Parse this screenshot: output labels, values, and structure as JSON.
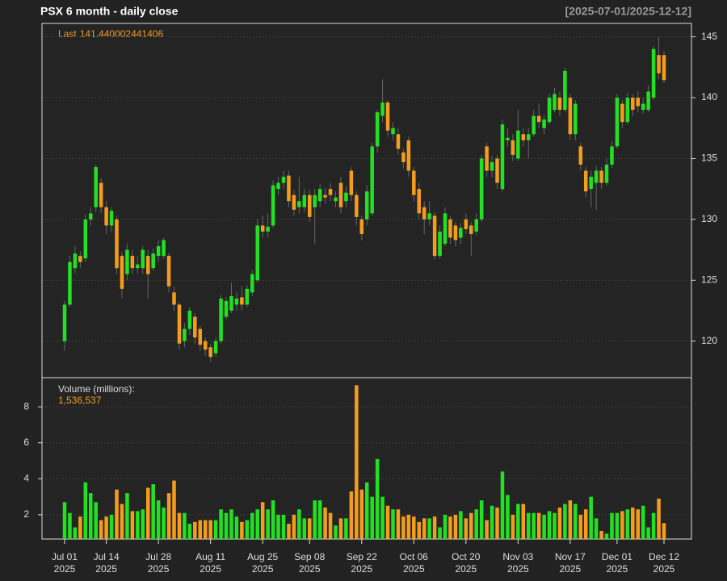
{
  "chart_data": [
    {
      "type": "candlestick",
      "title": "PSX  6 month - daily close",
      "date_range": "[2025-07-01/2025-12-12]",
      "last_prefix": "Last",
      "up_color": "#22e022",
      "down_color": "#f39c1e",
      "ylim": [
        117,
        146.1
      ],
      "yticks": [
        120,
        125,
        130,
        135,
        140,
        145
      ],
      "grid": true,
      "xticks": [
        {
          "value": "2025-07-01",
          "label": "Jul 01",
          "year": "2025"
        },
        {
          "value": "2025-07-14",
          "label": "Jul 14",
          "year": "2025"
        },
        {
          "value": "2025-07-28",
          "label": "Jul 28",
          "year": "2025"
        },
        {
          "value": "2025-08-11",
          "label": "Aug 11",
          "year": "2025"
        },
        {
          "value": "2025-08-25",
          "label": "Aug 25",
          "year": "2025"
        },
        {
          "value": "2025-09-08",
          "label": "Sep 08",
          "year": "2025"
        },
        {
          "value": "2025-09-22",
          "label": "Sep 22",
          "year": "2025"
        },
        {
          "value": "2025-10-06",
          "label": "Oct 06",
          "year": "2025"
        },
        {
          "value": "2025-10-20",
          "label": "Oct 20",
          "year": "2025"
        },
        {
          "value": "2025-11-03",
          "label": "Nov 03",
          "year": "2025"
        },
        {
          "value": "2025-11-17",
          "label": "Nov 17",
          "year": "2025"
        },
        {
          "value": "2025-12-01",
          "label": "Dec 01",
          "year": "2025"
        },
        {
          "value": "2025-12-12",
          "label": "Dec 12",
          "year": "2025"
        }
      ],
      "x": [
        "2025-07-01",
        "2025-07-02",
        "2025-07-03",
        "2025-07-07",
        "2025-07-08",
        "2025-07-09",
        "2025-07-10",
        "2025-07-11",
        "2025-07-14",
        "2025-07-15",
        "2025-07-16",
        "2025-07-17",
        "2025-07-18",
        "2025-07-21",
        "2025-07-22",
        "2025-07-23",
        "2025-07-24",
        "2025-07-25",
        "2025-07-28",
        "2025-07-29",
        "2025-07-30",
        "2025-07-31",
        "2025-08-01",
        "2025-08-04",
        "2025-08-05",
        "2025-08-06",
        "2025-08-07",
        "2025-08-08",
        "2025-08-11",
        "2025-08-12",
        "2025-08-13",
        "2025-08-14",
        "2025-08-15",
        "2025-08-18",
        "2025-08-19",
        "2025-08-20",
        "2025-08-21",
        "2025-08-22",
        "2025-08-25",
        "2025-08-26",
        "2025-08-27",
        "2025-08-28",
        "2025-08-29",
        "2025-09-02",
        "2025-09-03",
        "2025-09-04",
        "2025-09-05",
        "2025-09-08",
        "2025-09-09",
        "2025-09-10",
        "2025-09-11",
        "2025-09-12",
        "2025-09-15",
        "2025-09-16",
        "2025-09-17",
        "2025-09-18",
        "2025-09-19",
        "2025-09-22",
        "2025-09-23",
        "2025-09-24",
        "2025-09-25",
        "2025-09-26",
        "2025-09-29",
        "2025-09-30",
        "2025-10-01",
        "2025-10-02",
        "2025-10-03",
        "2025-10-06",
        "2025-10-07",
        "2025-10-08",
        "2025-10-09",
        "2025-10-10",
        "2025-10-13",
        "2025-10-14",
        "2025-10-15",
        "2025-10-16",
        "2025-10-17",
        "2025-10-20",
        "2025-10-21",
        "2025-10-22",
        "2025-10-23",
        "2025-10-24",
        "2025-10-27",
        "2025-10-28",
        "2025-10-29",
        "2025-10-30",
        "2025-10-31",
        "2025-11-03",
        "2025-11-04",
        "2025-11-05",
        "2025-11-06",
        "2025-11-07",
        "2025-11-10",
        "2025-11-11",
        "2025-11-12",
        "2025-11-13",
        "2025-11-14",
        "2025-11-17",
        "2025-11-18",
        "2025-11-19",
        "2025-11-20",
        "2025-11-21",
        "2025-11-24",
        "2025-11-25",
        "2025-11-26",
        "2025-11-28",
        "2025-12-01",
        "2025-12-02",
        "2025-12-03",
        "2025-12-04",
        "2025-12-05",
        "2025-12-08",
        "2025-12-09",
        "2025-12-10",
        "2025-12-11",
        "2025-12-12"
      ],
      "open": [
        120.0,
        123.0,
        126.0,
        127.0,
        126.8,
        130.0,
        131.0,
        133.0,
        131.0,
        129.5,
        130.0,
        127.0,
        125.5,
        127.0,
        126.0,
        126.0,
        127.0,
        126.0,
        127.0,
        127.0,
        127.0,
        124.0,
        123.0,
        120.0,
        121.0,
        122.0,
        121.0,
        120.0,
        119.5,
        119.0,
        120.0,
        122.0,
        122.5,
        123.0,
        123.6,
        123.0,
        124.0,
        125.0,
        129.5,
        129.0,
        129.5,
        132.5,
        133.0,
        133.6,
        132.0,
        131.0,
        131.0,
        132.0,
        131.0,
        131.5,
        132.0,
        132.5,
        131.5,
        133.0,
        131.5,
        134.0,
        132.0,
        130.0,
        130.0,
        130.5,
        136.0,
        138.5,
        139.6,
        137.0,
        137.0,
        135.5,
        136.5,
        134.0,
        132.5,
        131.0,
        130.0,
        130.3,
        127.0,
        128.0,
        130.0,
        129.5,
        128.5,
        130.0,
        129.5,
        129.0,
        130.0,
        136.0,
        134.0,
        135.0,
        132.5,
        136.5,
        136.5,
        135.0,
        137.0,
        136.5,
        137.0,
        138.5,
        137.5,
        138.0,
        139.0,
        140.0,
        139.0,
        140.0,
        137.0,
        136.0,
        134.0,
        132.5,
        133.0,
        134.0,
        133.0,
        134.5,
        136.0,
        139.5,
        138.0,
        140.0,
        140.0,
        139.0,
        139.0,
        140.0,
        143.5,
        143.5
      ],
      "high": [
        123.3,
        127.0,
        127.8,
        127.4,
        130.4,
        131.0,
        134.5,
        133.4,
        131.5,
        131.0,
        130.3,
        127.3,
        128.0,
        127.5,
        127.0,
        127.8,
        127.5,
        127.6,
        128.3,
        128.5,
        127.2,
        124.5,
        123.2,
        121.5,
        122.8,
        122.3,
        121.3,
        120.3,
        119.8,
        120.3,
        123.8,
        123.6,
        124.8,
        124.0,
        124.5,
        124.6,
        125.8,
        130.0,
        130.3,
        130.5,
        133.2,
        133.5,
        134.0,
        134.0,
        132.4,
        133.5,
        132.5,
        132.4,
        132.5,
        132.9,
        132.6,
        133.0,
        132.3,
        133.5,
        132.7,
        134.3,
        132.3,
        130.3,
        132.8,
        136.3,
        139.0,
        141.5,
        139.8,
        138.0,
        137.5,
        135.8,
        136.8,
        134.3,
        133.0,
        131.5,
        131.5,
        130.6,
        129.5,
        131.0,
        130.3,
        129.8,
        129.7,
        130.5,
        129.8,
        130.5,
        135.3,
        136.3,
        135.2,
        135.3,
        138.2,
        137.5,
        137.0,
        139.0,
        137.5,
        137.5,
        139.0,
        139.5,
        138.6,
        140.3,
        140.8,
        140.5,
        142.5,
        140.3,
        139.8,
        136.3,
        134.3,
        134.0,
        134.4,
        134.3,
        135.0,
        136.4,
        140.3,
        139.8,
        140.4,
        140.3,
        140.5,
        140.0,
        141.0,
        144.2,
        145.0,
        143.8
      ],
      "low": [
        119.2,
        122.8,
        125.6,
        126.0,
        126.5,
        129.5,
        130.6,
        130.5,
        128.8,
        129.0,
        125.5,
        123.5,
        125.0,
        125.5,
        125.6,
        125.5,
        123.5,
        125.8,
        126.5,
        126.8,
        124.0,
        122.5,
        119.3,
        119.5,
        120.5,
        119.8,
        119.2,
        118.8,
        118.3,
        118.7,
        119.8,
        121.8,
        122.3,
        122.5,
        122.5,
        122.8,
        123.7,
        124.8,
        128.5,
        128.5,
        129.3,
        132.0,
        132.5,
        131.0,
        130.3,
        130.5,
        130.6,
        129.8,
        128.0,
        131.0,
        131.3,
        131.5,
        131.0,
        130.5,
        131.0,
        131.5,
        129.5,
        128.3,
        129.5,
        130.3,
        135.5,
        138.0,
        136.8,
        136.5,
        135.3,
        134.2,
        133.5,
        131.5,
        130.0,
        128.8,
        129.5,
        126.7,
        126.8,
        127.8,
        128.0,
        127.8,
        128.0,
        128.8,
        127.0,
        128.7,
        129.8,
        133.5,
        133.5,
        132.5,
        132.3,
        136.0,
        134.8,
        134.8,
        136.0,
        135.0,
        136.8,
        137.5,
        137.0,
        137.8,
        138.8,
        138.5,
        138.8,
        136.5,
        136.5,
        134.0,
        131.8,
        131.0,
        130.8,
        132.5,
        132.8,
        134.2,
        135.8,
        137.5,
        137.8,
        138.5,
        138.8,
        138.7,
        138.8,
        139.8,
        141.5,
        141.2
      ],
      "close": [
        123.0,
        126.5,
        127.2,
        126.5,
        130.0,
        130.5,
        134.3,
        131.0,
        129.5,
        130.7,
        126.0,
        124.3,
        127.5,
        126.0,
        126.3,
        127.5,
        125.5,
        127.2,
        127.8,
        128.3,
        124.5,
        123.0,
        119.8,
        121.0,
        122.5,
        120.3,
        119.7,
        119.3,
        118.7,
        120.0,
        123.5,
        123.3,
        123.7,
        123.5,
        123.0,
        124.3,
        125.5,
        129.5,
        129.0,
        129.4,
        132.8,
        133.0,
        133.5,
        131.5,
        130.8,
        131.5,
        132.0,
        130.2,
        132.0,
        132.5,
        131.8,
        132.0,
        131.8,
        131.0,
        132.2,
        132.0,
        130.2,
        128.8,
        132.3,
        136.0,
        138.8,
        139.6,
        137.3,
        137.5,
        135.8,
        134.7,
        134.0,
        132.0,
        130.5,
        130.0,
        130.5,
        127.0,
        129.0,
        130.5,
        128.5,
        128.3,
        129.3,
        129.2,
        128.8,
        130.0,
        135.0,
        134.0,
        134.7,
        133.0,
        137.8,
        136.7,
        135.3,
        137.3,
        136.5,
        137.0,
        138.5,
        138.0,
        138.2,
        140.0,
        140.3,
        139.0,
        142.2,
        137.0,
        139.5,
        134.5,
        132.3,
        133.5,
        134.0,
        133.0,
        134.5,
        136.0,
        140.0,
        138.0,
        140.0,
        139.0,
        139.3,
        139.5,
        140.5,
        144.0,
        142.0,
        141.440002441406
      ]
    },
    {
      "type": "bar",
      "title": "Volume (millions):",
      "last_label": "1,536,537",
      "ylim": [
        0.65,
        9.62
      ],
      "yticks": [
        2,
        4,
        6,
        8
      ],
      "grid": true,
      "values": [
        2.7,
        2.1,
        1.3,
        1.9,
        3.8,
        3.2,
        2.7,
        1.7,
        1.9,
        2.0,
        3.4,
        2.6,
        3.2,
        2.2,
        2.2,
        2.3,
        3.5,
        3.7,
        2.8,
        2.4,
        3.2,
        3.9,
        2.1,
        2.1,
        1.5,
        1.6,
        1.7,
        1.7,
        1.7,
        1.7,
        2.3,
        2.1,
        2.3,
        1.9,
        1.6,
        1.7,
        2.1,
        2.3,
        2.7,
        2.3,
        2.8,
        2.0,
        2.0,
        1.5,
        2.0,
        2.3,
        1.8,
        1.8,
        2.8,
        2.8,
        2.4,
        2.1,
        1.4,
        1.8,
        1.8,
        3.3,
        9.2,
        3.4,
        3.8,
        3.0,
        5.1,
        3.0,
        2.5,
        2.3,
        2.3,
        1.9,
        2.0,
        1.9,
        1.6,
        1.8,
        1.8,
        1.9,
        1.3,
        2.0,
        1.9,
        2.0,
        2.2,
        1.8,
        2.1,
        2.3,
        2.8,
        1.7,
        2.5,
        2.4,
        4.4,
        3.1,
        2.0,
        2.6,
        2.6,
        2.1,
        2.1,
        2.1,
        2.0,
        2.2,
        2.1,
        2.4,
        2.6,
        2.8,
        2.6,
        2.0,
        2.3,
        3.0,
        1.8,
        1.1,
        0.95,
        2.1,
        2.1,
        2.2,
        2.3,
        2.4,
        2.3,
        2.5,
        1.3,
        2.1,
        2.9,
        1.536537
      ]
    }
  ]
}
